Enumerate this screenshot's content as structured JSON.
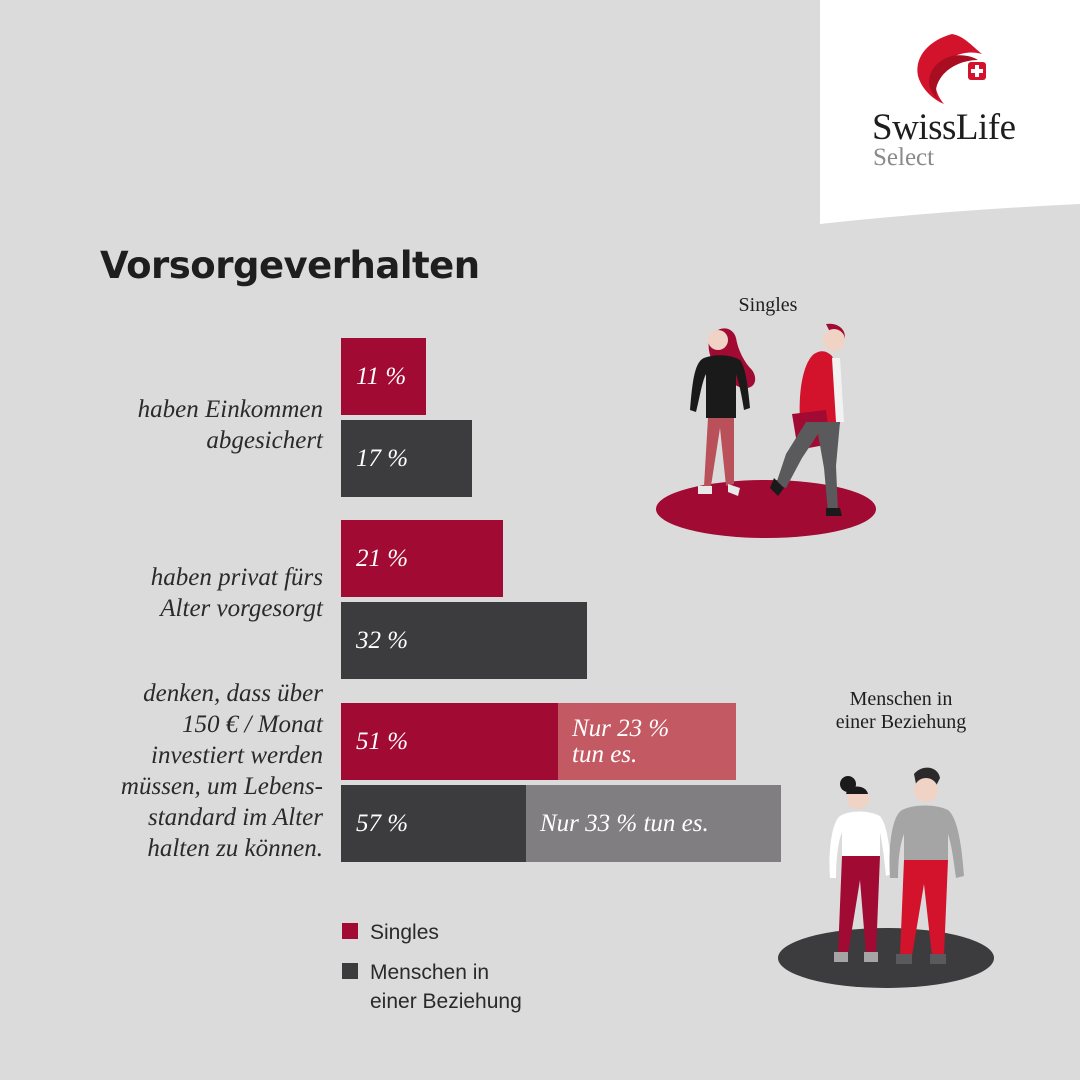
{
  "brand": {
    "name": "SwissLife",
    "sub": "Select"
  },
  "title": "Vorsorgeverhalten",
  "colors": {
    "singles": "#a10a32",
    "beziehung": "#3c3c3e",
    "singles_remainder": "#c35a63",
    "beziehung_remainder": "#807e80",
    "background": "#dbdbdb"
  },
  "chart_data": {
    "type": "bar",
    "orientation": "horizontal",
    "categories": [
      "haben Einkommen abgesichert",
      "haben privat fürs Alter vorgesorgt",
      "denken, dass über 150 € / Monat investiert werden müssen, um Lebensstandard im Alter halten zu können."
    ],
    "category_lines": [
      [
        "haben Einkommen",
        "abgesichert"
      ],
      [
        "haben privat fürs",
        "Alter vorgesorgt"
      ],
      [
        "denken, dass über",
        "150 € / Monat",
        "investiert werden",
        "müssen, um Lebens-",
        "standard im Alter",
        "halten zu können."
      ]
    ],
    "series": [
      {
        "name": "Singles",
        "values": [
          11,
          21,
          51
        ],
        "labels": [
          "11 %",
          "21 %",
          "51 %"
        ]
      },
      {
        "name": "Menschen in einer Beziehung",
        "values": [
          17,
          32,
          57
        ],
        "labels": [
          "17 %",
          "32 %",
          "57 %"
        ]
      }
    ],
    "annotations": [
      {
        "series": 0,
        "category": 2,
        "value": 23,
        "lines": [
          "Nur 23 %",
          "tun es."
        ]
      },
      {
        "series": 1,
        "category": 2,
        "value": 33,
        "lines": [
          "Nur 33 % tun es."
        ]
      }
    ]
  },
  "legend": [
    {
      "label_lines": [
        "Singles"
      ],
      "color": "#a10a32"
    },
    {
      "label_lines": [
        "Menschen in",
        "einer Beziehung"
      ],
      "color": "#3c3c3e"
    }
  ],
  "illustrations": {
    "singles": {
      "caption": "Singles",
      "icon": "walking-singles-illustration"
    },
    "couple": {
      "caption_lines": [
        "Menschen in",
        "einer Beziehung"
      ],
      "icon": "couple-illustration"
    }
  }
}
